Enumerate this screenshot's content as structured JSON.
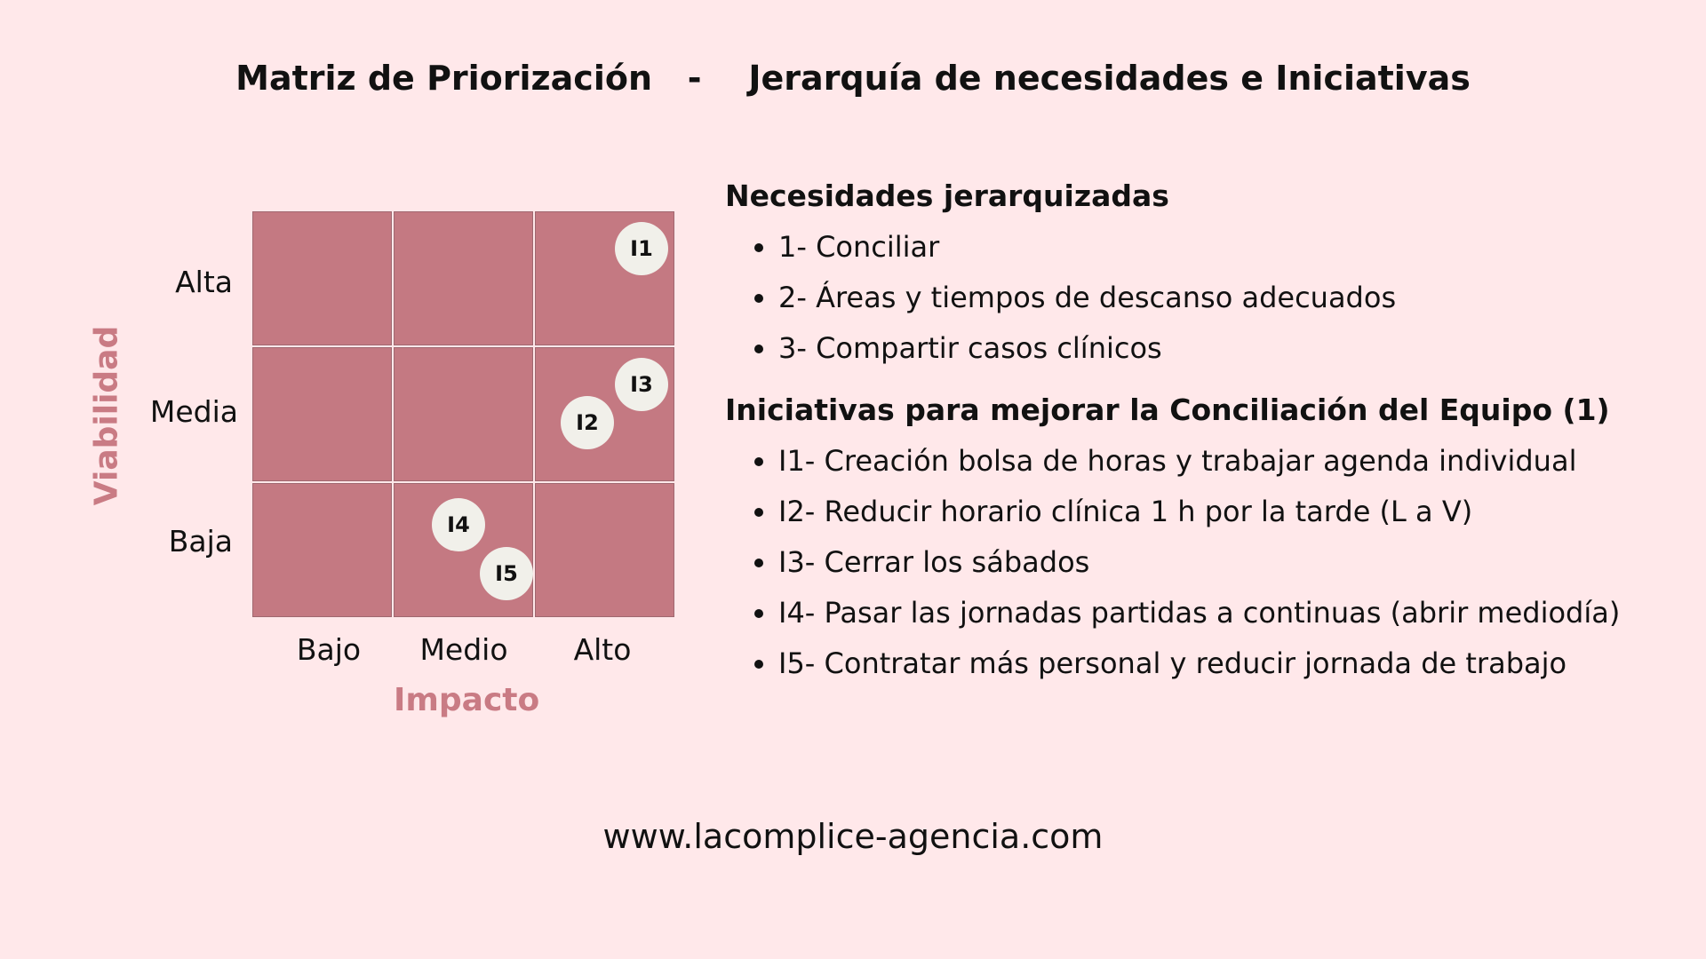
{
  "title": "Matriz de Priorización   -    Jerarquía de necesidades e Iniciativas",
  "matrix": {
    "y_axis_title": "Viabilidad",
    "x_axis_title": "Impacto",
    "y_labels": [
      "Alta",
      "Media",
      "Baja"
    ],
    "x_labels": [
      "Bajo",
      "Medio",
      "Alto"
    ],
    "items": [
      {
        "label": "I1",
        "impacto": "Alto",
        "viabilidad": "Alta"
      },
      {
        "label": "I2",
        "impacto": "Alto",
        "viabilidad": "Media"
      },
      {
        "label": "I3",
        "impacto": "Alto",
        "viabilidad": "Media"
      },
      {
        "label": "I4",
        "impacto": "Medio",
        "viabilidad": "Baja"
      },
      {
        "label": "I5",
        "impacto": "Medio",
        "viabilidad": "Baja"
      }
    ],
    "colors": {
      "cell": "#c47982",
      "bubble": "#f1f0ea",
      "axis_title": "#c97b84",
      "background": "#ffe8ea"
    }
  },
  "needs": {
    "heading": "Necesidades jerarquizadas",
    "items": [
      "1- Conciliar",
      "2- Áreas y tiempos de descanso adecuados",
      "3- Compartir casos clínicos"
    ]
  },
  "initiatives": {
    "heading": "Iniciativas para mejorar la Conciliación del Equipo (1)",
    "items": [
      "I1- Creación bolsa de horas y trabajar agenda individual",
      "I2- Reducir horario clínica 1 h por la tarde (L a V)",
      "I3- Cerrar los sábados",
      "I4- Pasar las jornadas partidas a continuas (abrir mediodía)",
      "I5- Contratar más personal y reducir jornada de trabajo"
    ]
  },
  "footer": "www.lacomplice-agencia.com"
}
